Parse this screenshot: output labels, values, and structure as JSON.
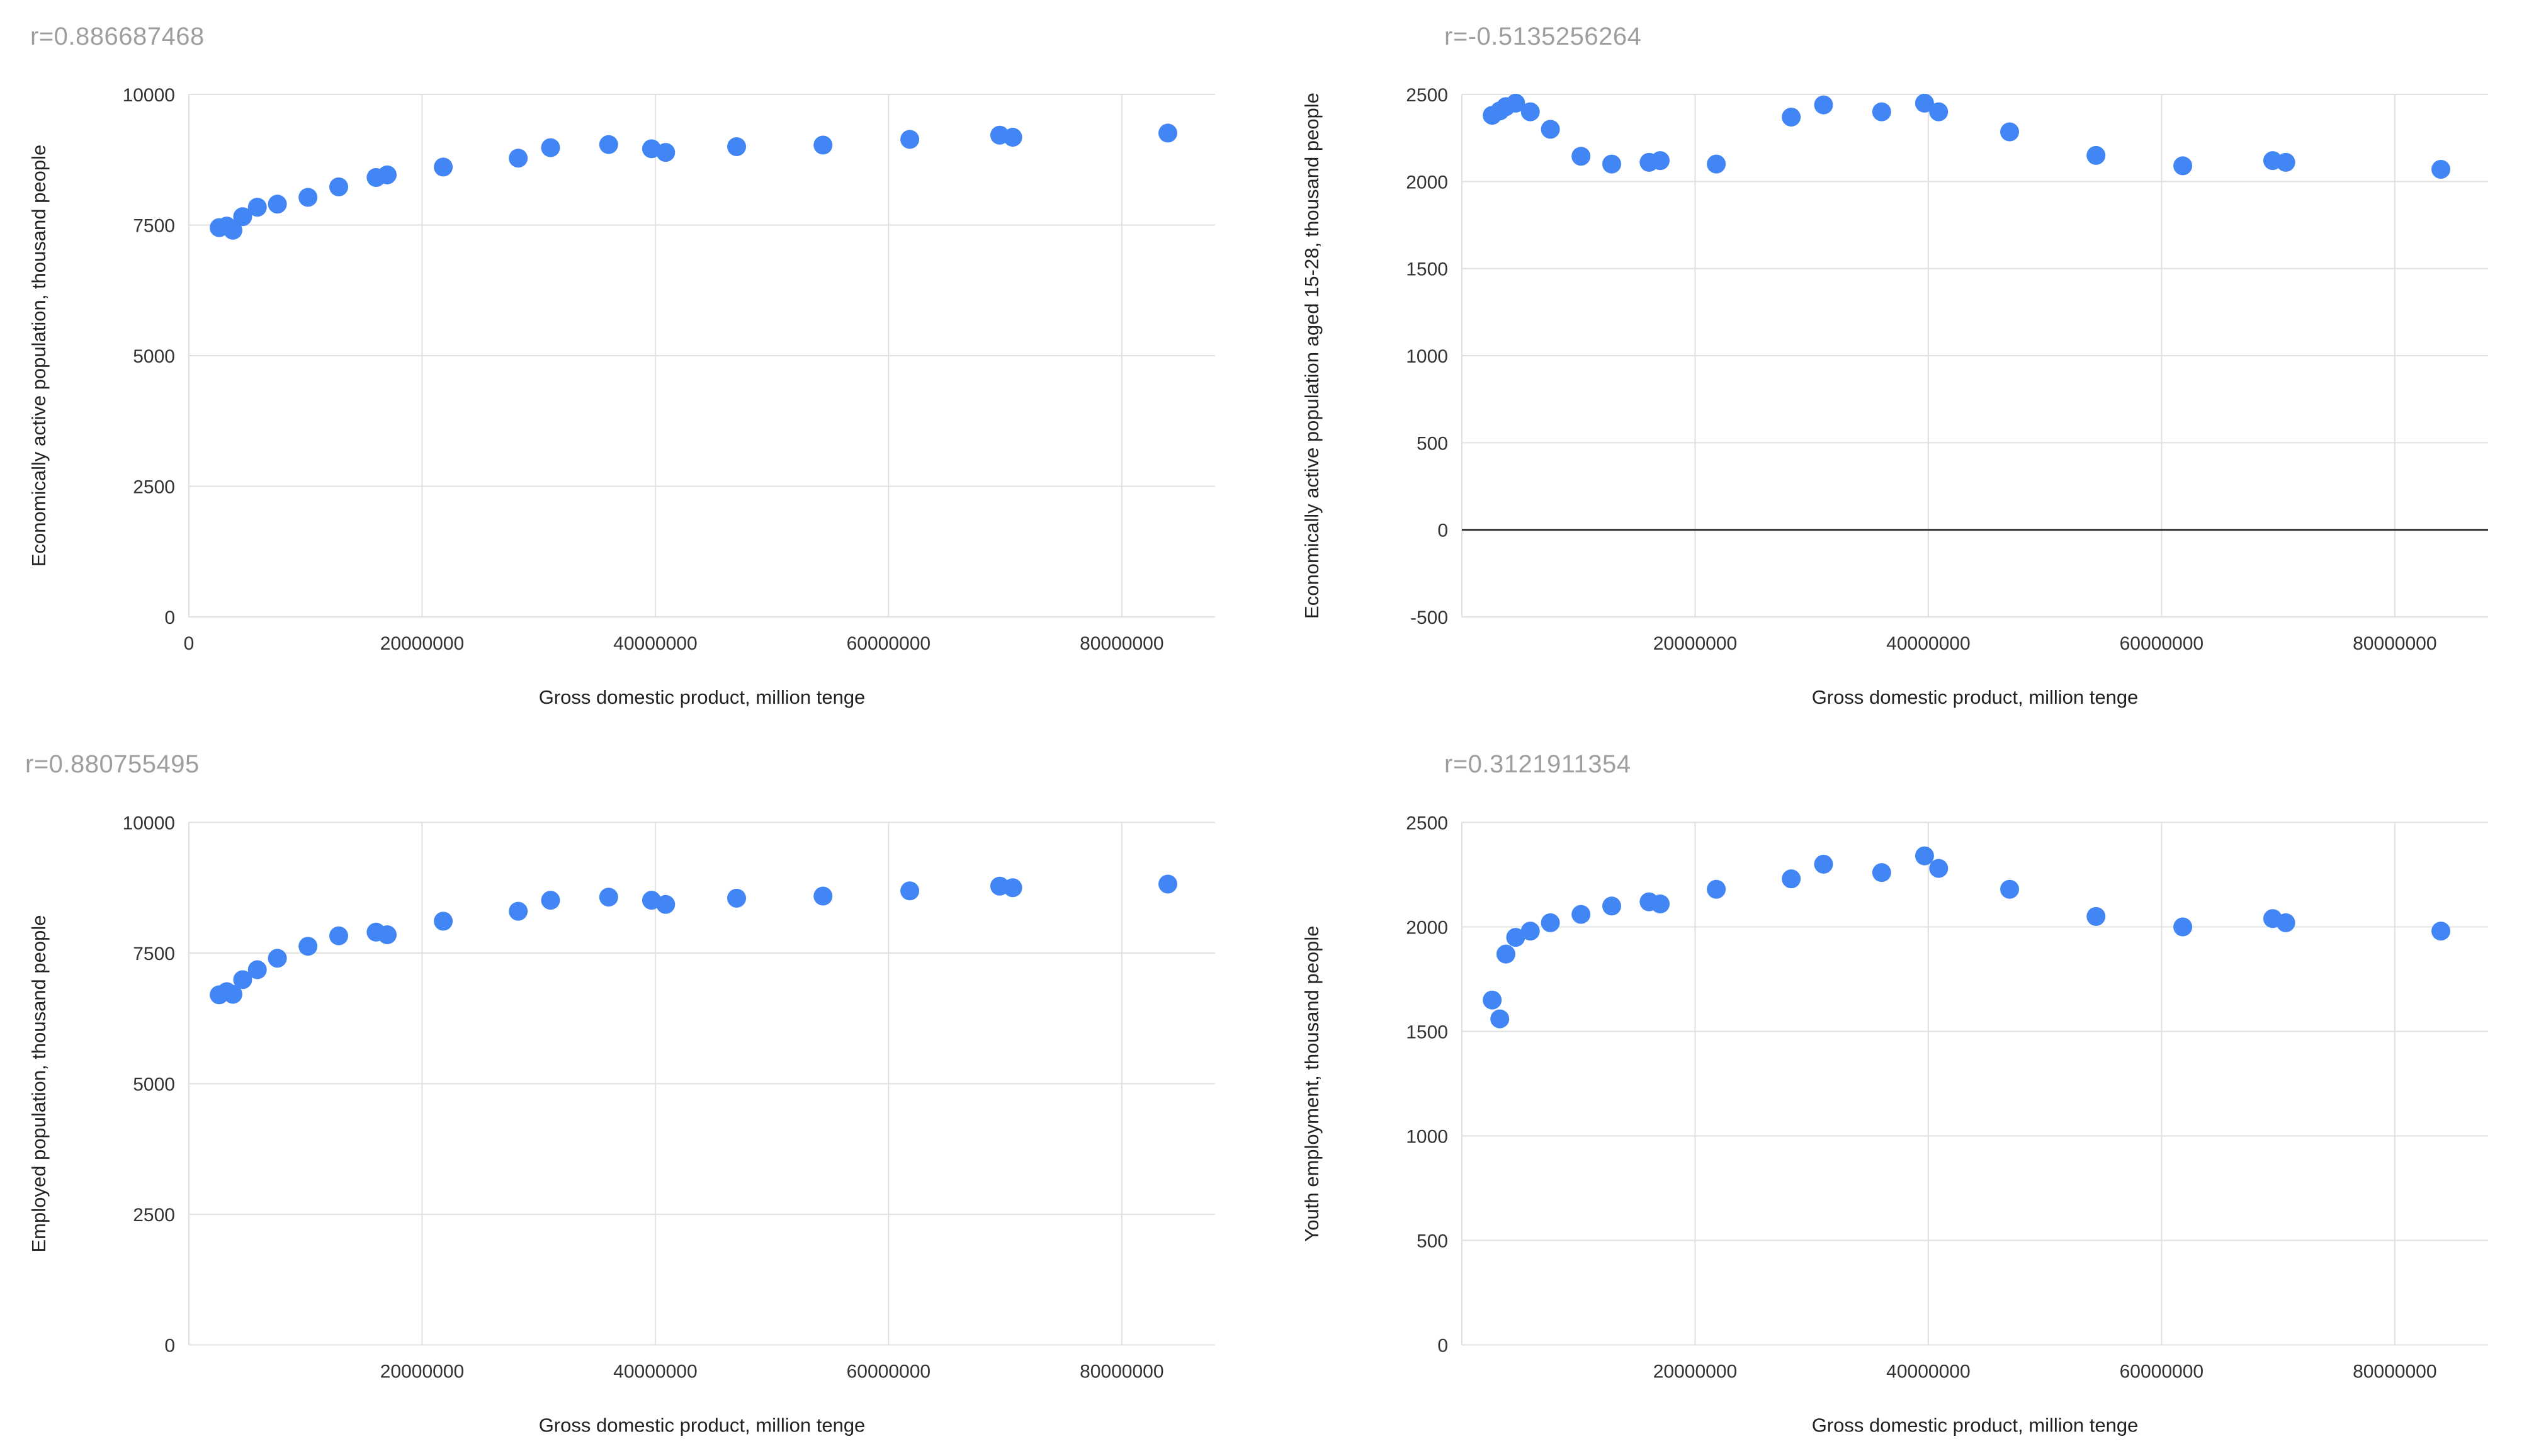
{
  "style": {
    "point_color": "#4285f4",
    "grid_color": "#e0e0e0",
    "baseline_color": "#333333",
    "title_color": "#9e9e9e",
    "tick_color": "#333333",
    "label_color": "#222222",
    "background": "#ffffff"
  },
  "chart_data": [
    {
      "type": "scatter",
      "title": "r=0.886687468",
      "xlabel": "Gross domestic product, million tenge",
      "ylabel": "Economically active population, thousand people",
      "xlim": [
        0,
        88000000
      ],
      "ylim": [
        0,
        10000
      ],
      "baseline": null,
      "grid": true,
      "legend": "none",
      "x_gridlines": [
        0,
        20000000,
        40000000,
        60000000,
        80000000
      ],
      "x_ticks": [
        {
          "value": 0,
          "label": "0"
        },
        {
          "value": 20000000,
          "label": "20000000"
        },
        {
          "value": 40000000,
          "label": "40000000"
        },
        {
          "value": 60000000,
          "label": "60000000"
        },
        {
          "value": 80000000,
          "label": "80000000"
        }
      ],
      "y_ticks": [
        {
          "value": 0,
          "label": "0"
        },
        {
          "value": 2500,
          "label": "2500"
        },
        {
          "value": 5000,
          "label": "5000"
        },
        {
          "value": 7500,
          "label": "7500"
        },
        {
          "value": 10000,
          "label": "10000"
        }
      ],
      "points": [
        [
          2599902,
          7450
        ],
        [
          3250593,
          7480
        ],
        [
          3776277,
          7400
        ],
        [
          4611975,
          7660
        ],
        [
          5870134,
          7840
        ],
        [
          7590594,
          7900
        ],
        [
          10213731,
          8030
        ],
        [
          12849794,
          8230
        ],
        [
          16052919,
          8410
        ],
        [
          17007647,
          8460
        ],
        [
          21815517,
          8610
        ],
        [
          28243052,
          8780
        ],
        [
          31015187,
          8980
        ],
        [
          35999025,
          9040
        ],
        [
          39675833,
          8960
        ],
        [
          40884134,
          8890
        ],
        [
          46971150,
          9000
        ],
        [
          54378858,
          9030
        ],
        [
          61819536,
          9140
        ],
        [
          69532626,
          9220
        ],
        [
          70649033,
          9180
        ],
        [
          83951588,
          9260
        ]
      ]
    },
    {
      "type": "scatter",
      "title": "r=-0.5135256264",
      "xlabel": "Gross domestic product, million tenge",
      "ylabel": "Economically active population aged 15-28, thousand people",
      "xlim": [
        0,
        88000000
      ],
      "ylim": [
        -500,
        2500
      ],
      "baseline": 0,
      "grid": true,
      "legend": "none",
      "x_gridlines": [
        0,
        20000000,
        40000000,
        60000000,
        80000000
      ],
      "x_ticks": [
        {
          "value": 20000000,
          "label": "20000000"
        },
        {
          "value": 40000000,
          "label": "40000000"
        },
        {
          "value": 60000000,
          "label": "60000000"
        },
        {
          "value": 80000000,
          "label": "80000000"
        }
      ],
      "y_ticks": [
        {
          "value": -500,
          "label": "-500"
        },
        {
          "value": 0,
          "label": "0"
        },
        {
          "value": 500,
          "label": "500"
        },
        {
          "value": 1000,
          "label": "1000"
        },
        {
          "value": 1500,
          "label": "1500"
        },
        {
          "value": 2000,
          "label": "2000"
        },
        {
          "value": 2500,
          "label": "2500"
        }
      ],
      "points": [
        [
          2599902,
          2380
        ],
        [
          3250593,
          2405
        ],
        [
          3776277,
          2430
        ],
        [
          4611975,
          2450
        ],
        [
          5870134,
          2400
        ],
        [
          7590594,
          2300
        ],
        [
          10213731,
          2145
        ],
        [
          12849794,
          2100
        ],
        [
          16052919,
          2110
        ],
        [
          17007647,
          2120
        ],
        [
          21815517,
          2100
        ],
        [
          28243052,
          2370
        ],
        [
          31015187,
          2440
        ],
        [
          35999025,
          2400
        ],
        [
          39675833,
          2450
        ],
        [
          40884134,
          2400
        ],
        [
          46971150,
          2285
        ],
        [
          54378858,
          2150
        ],
        [
          61819536,
          2090
        ],
        [
          69532626,
          2120
        ],
        [
          70649033,
          2110
        ],
        [
          83951588,
          2070
        ]
      ]
    },
    {
      "type": "scatter",
      "title": "r=0.880755495",
      "xlabel": "Gross domestic product, million tenge",
      "ylabel": "Employed population, thousand people",
      "xlim": [
        0,
        88000000
      ],
      "ylim": [
        0,
        10000
      ],
      "baseline": null,
      "grid": true,
      "legend": "none",
      "x_gridlines": [
        0,
        20000000,
        40000000,
        60000000,
        80000000
      ],
      "x_ticks": [
        {
          "value": 20000000,
          "label": "20000000"
        },
        {
          "value": 40000000,
          "label": "40000000"
        },
        {
          "value": 60000000,
          "label": "60000000"
        },
        {
          "value": 80000000,
          "label": "80000000"
        }
      ],
      "y_ticks": [
        {
          "value": 0,
          "label": "0"
        },
        {
          "value": 2500,
          "label": "2500"
        },
        {
          "value": 5000,
          "label": "5000"
        },
        {
          "value": 7500,
          "label": "7500"
        },
        {
          "value": 10000,
          "label": "10000"
        }
      ],
      "points": [
        [
          2599902,
          6700
        ],
        [
          3250593,
          6760
        ],
        [
          3776277,
          6710
        ],
        [
          4611975,
          6990
        ],
        [
          5870134,
          7180
        ],
        [
          7590594,
          7400
        ],
        [
          10213731,
          7630
        ],
        [
          12849794,
          7830
        ],
        [
          16052919,
          7900
        ],
        [
          17007647,
          7850
        ],
        [
          21815517,
          8110
        ],
        [
          28243052,
          8300
        ],
        [
          31015187,
          8510
        ],
        [
          35999025,
          8570
        ],
        [
          39675833,
          8510
        ],
        [
          40884134,
          8430
        ],
        [
          46971150,
          8550
        ],
        [
          54378858,
          8590
        ],
        [
          61819536,
          8690
        ],
        [
          69532626,
          8780
        ],
        [
          70649033,
          8750
        ],
        [
          83951588,
          8820
        ]
      ]
    },
    {
      "type": "scatter",
      "title": "r=0.3121911354",
      "xlabel": "Gross domestic product, million tenge",
      "ylabel": "Youth employment, thousand people",
      "xlim": [
        0,
        88000000
      ],
      "ylim": [
        0,
        2500
      ],
      "baseline": null,
      "grid": true,
      "legend": "none",
      "x_gridlines": [
        0,
        20000000,
        40000000,
        60000000,
        80000000
      ],
      "x_ticks": [
        {
          "value": 20000000,
          "label": "20000000"
        },
        {
          "value": 40000000,
          "label": "40000000"
        },
        {
          "value": 60000000,
          "label": "60000000"
        },
        {
          "value": 80000000,
          "label": "80000000"
        }
      ],
      "y_ticks": [
        {
          "value": 0,
          "label": "0"
        },
        {
          "value": 500,
          "label": "500"
        },
        {
          "value": 1000,
          "label": "1000"
        },
        {
          "value": 1500,
          "label": "1500"
        },
        {
          "value": 2000,
          "label": "2000"
        },
        {
          "value": 2500,
          "label": "2500"
        }
      ],
      "points": [
        [
          2599902,
          1650
        ],
        [
          3250593,
          1560
        ],
        [
          3776277,
          1870
        ],
        [
          4611975,
          1950
        ],
        [
          5870134,
          1980
        ],
        [
          7590594,
          2020
        ],
        [
          10213731,
          2060
        ],
        [
          12849794,
          2100
        ],
        [
          16052919,
          2120
        ],
        [
          17007647,
          2110
        ],
        [
          21815517,
          2180
        ],
        [
          28243052,
          2230
        ],
        [
          31015187,
          2300
        ],
        [
          35999025,
          2260
        ],
        [
          39675833,
          2340
        ],
        [
          40884134,
          2280
        ],
        [
          46971150,
          2180
        ],
        [
          54378858,
          2050
        ],
        [
          61819536,
          2000
        ],
        [
          69532626,
          2040
        ],
        [
          70649033,
          2020
        ],
        [
          83951588,
          1980
        ]
      ]
    }
  ]
}
